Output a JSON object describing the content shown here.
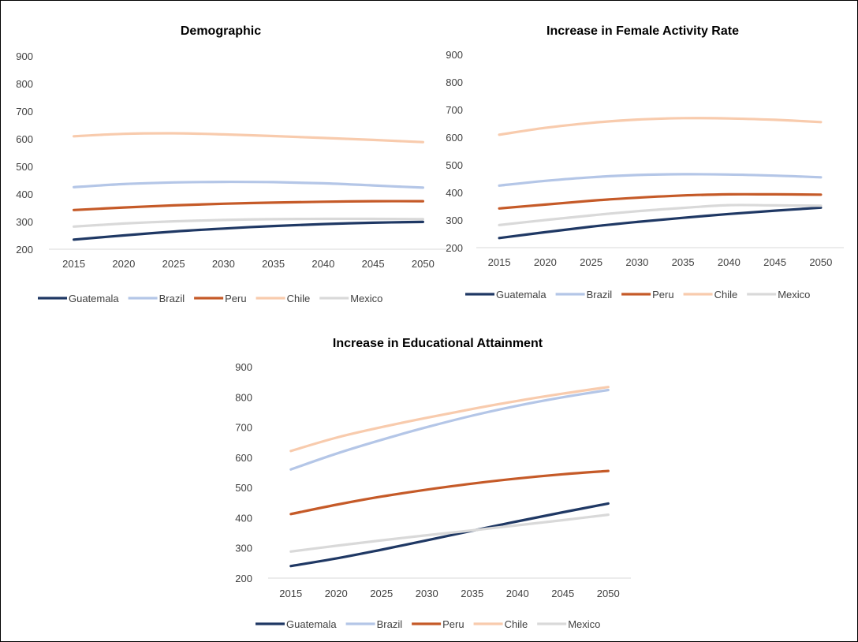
{
  "chart_data": [
    {
      "type": "line",
      "title": "Demographic",
      "xlabel": "",
      "ylabel": "",
      "x": [
        2015,
        2020,
        2025,
        2030,
        2035,
        2040,
        2045,
        2050
      ],
      "ylim": [
        200,
        900
      ],
      "yticks": [
        200,
        300,
        400,
        500,
        600,
        700,
        800,
        900
      ],
      "grid": false,
      "legend": "bottom",
      "series": [
        {
          "name": "Guatemala",
          "color": "#1F3864",
          "values": [
            235,
            250,
            264,
            275,
            284,
            291,
            296,
            299
          ]
        },
        {
          "name": "Brazil",
          "color": "#B4C6E7",
          "values": [
            425,
            436,
            442,
            444,
            443,
            439,
            431,
            423
          ]
        },
        {
          "name": "Peru",
          "color": "#C55A28",
          "values": [
            342,
            351,
            359,
            365,
            369,
            372,
            374,
            374
          ]
        },
        {
          "name": "Chile",
          "color": "#F8CBAD",
          "values": [
            609,
            618,
            620,
            616,
            610,
            603,
            596,
            588
          ]
        },
        {
          "name": "Mexico",
          "color": "#D9D9D9",
          "values": [
            282,
            293,
            301,
            306,
            309,
            310,
            310,
            309
          ]
        }
      ]
    },
    {
      "type": "line",
      "title": "Increase in Female Activity Rate",
      "xlabel": "",
      "ylabel": "",
      "x": [
        2015,
        2020,
        2025,
        2030,
        2035,
        2040,
        2045,
        2050
      ],
      "ylim": [
        200,
        900
      ],
      "yticks": [
        200,
        300,
        400,
        500,
        600,
        700,
        800,
        900
      ],
      "grid": false,
      "legend": "bottom",
      "series": [
        {
          "name": "Guatemala",
          "color": "#1F3864",
          "values": [
            235,
            256,
            276,
            293,
            308,
            322,
            334,
            345
          ]
        },
        {
          "name": "Brazil",
          "color": "#B4C6E7",
          "values": [
            425,
            442,
            455,
            463,
            466,
            465,
            461,
            455
          ]
        },
        {
          "name": "Peru",
          "color": "#C55A28",
          "values": [
            342,
            356,
            370,
            381,
            389,
            393,
            393,
            392
          ]
        },
        {
          "name": "Chile",
          "color": "#F8CBAD",
          "values": [
            609,
            634,
            652,
            664,
            669,
            668,
            663,
            655
          ]
        },
        {
          "name": "Mexico",
          "color": "#D9D9D9",
          "values": [
            282,
            300,
            317,
            332,
            344,
            354,
            353,
            352
          ]
        }
      ]
    },
    {
      "type": "line",
      "title": "Increase in Educational Attainment",
      "xlabel": "",
      "ylabel": "",
      "x": [
        2015,
        2020,
        2025,
        2030,
        2035,
        2040,
        2045,
        2050
      ],
      "ylim": [
        200,
        900
      ],
      "yticks": [
        200,
        300,
        400,
        500,
        600,
        700,
        800,
        900
      ],
      "grid": false,
      "legend": "bottom",
      "series": [
        {
          "name": "Guatemala",
          "color": "#1F3864",
          "values": [
            240,
            265,
            294,
            325,
            357,
            388,
            418,
            447
          ]
        },
        {
          "name": "Brazil",
          "color": "#B4C6E7",
          "values": [
            560,
            612,
            658,
            700,
            738,
            771,
            799,
            823
          ]
        },
        {
          "name": "Peru",
          "color": "#C55A28",
          "values": [
            412,
            443,
            470,
            493,
            513,
            530,
            544,
            555
          ]
        },
        {
          "name": "Chile",
          "color": "#F8CBAD",
          "values": [
            621,
            665,
            700,
            731,
            760,
            787,
            811,
            833
          ]
        },
        {
          "name": "Mexico",
          "color": "#D9D9D9",
          "values": [
            288,
            307,
            325,
            342,
            358,
            375,
            392,
            410
          ]
        }
      ]
    }
  ]
}
